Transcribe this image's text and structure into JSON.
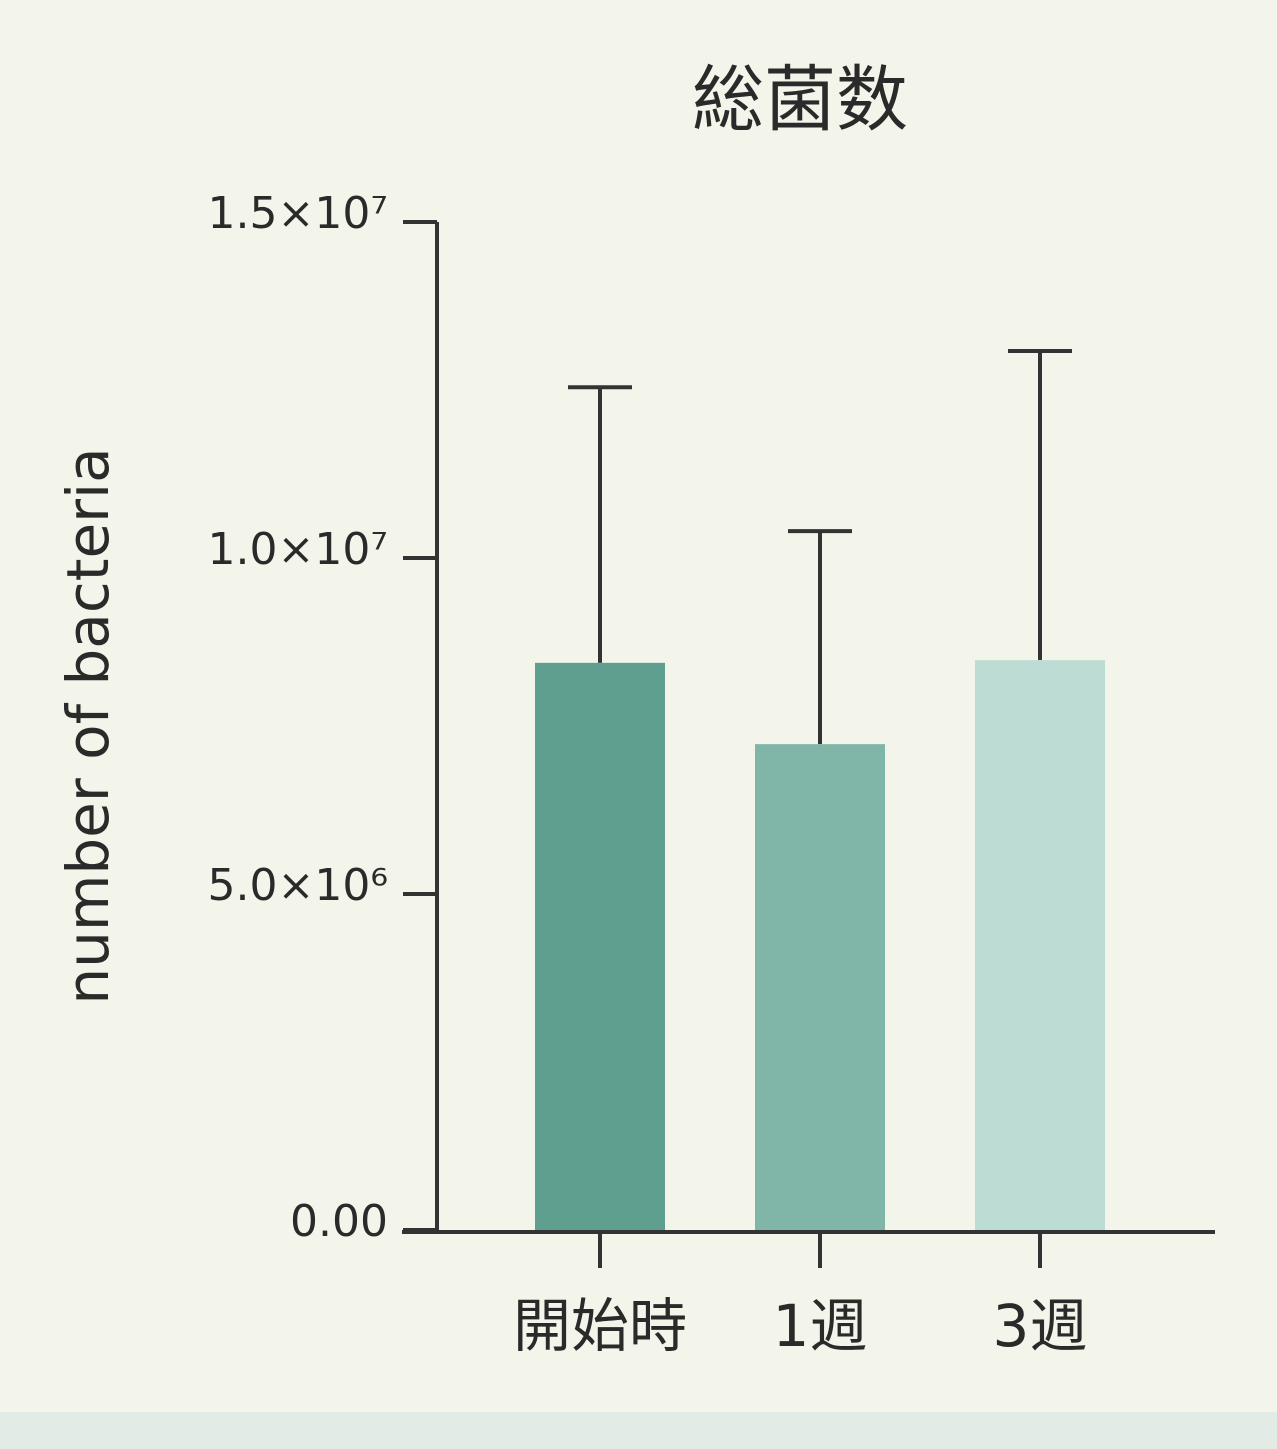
{
  "chart_data": {
    "type": "bar",
    "title": "総菌数",
    "y_label": "number of bacteria",
    "categories": [
      "開始時",
      "1週",
      "3週"
    ],
    "values": [
      8440000,
      7230000,
      8480000
    ],
    "errors": [
      4100000,
      3170000,
      4600000
    ],
    "colors": [
      "#5f9f8f",
      "#80b6a8",
      "#bddcd3"
    ],
    "ylim": [
      0,
      15000000
    ],
    "yticks": [
      {
        "value": 0,
        "label": "0.00"
      },
      {
        "value": 5000000,
        "label": "5.0×10⁶"
      },
      {
        "value": 10000000,
        "label": "1.0×10⁷"
      },
      {
        "value": 15000000,
        "label": "1.5×10⁷"
      }
    ],
    "grid": false
  }
}
